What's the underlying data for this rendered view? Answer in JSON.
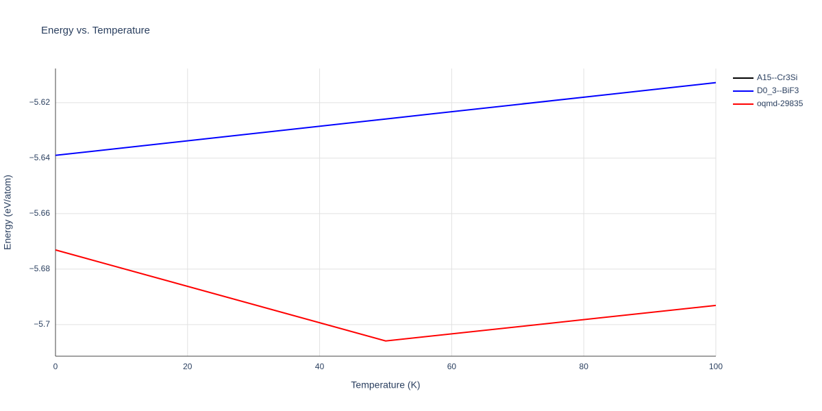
{
  "chart_data": {
    "type": "line",
    "title": "Energy vs. Temperature",
    "x_label": "Temperature (K)",
    "y_label": "Energy (eV/atom)",
    "x": [
      0,
      50,
      100
    ],
    "series": [
      {
        "name": "A15--Cr3Si",
        "color": "#000000",
        "values": [
          null,
          null,
          null
        ]
      },
      {
        "name": "D0_3--BiF3",
        "color": "#0000ff",
        "values": [
          -5.639,
          -5.6259,
          -5.6128
        ]
      },
      {
        "name": "oqmd-29835",
        "color": "#ff0000",
        "values": [
          -5.6731,
          -5.7059,
          -5.6931
        ]
      }
    ],
    "xlim": [
      0,
      100
    ],
    "xticks": [
      0,
      20,
      40,
      60,
      80,
      100
    ],
    "ylim": [
      -5.7114,
      -5.6077
    ],
    "yticks": [
      {
        "value": -5.62,
        "label": "−5.62"
      },
      {
        "value": -5.64,
        "label": "−5.64"
      },
      {
        "value": -5.66,
        "label": "−5.66"
      },
      {
        "value": -5.68,
        "label": "−5.68"
      },
      {
        "value": -5.7,
        "label": "−5.7"
      }
    ],
    "grid": true
  }
}
